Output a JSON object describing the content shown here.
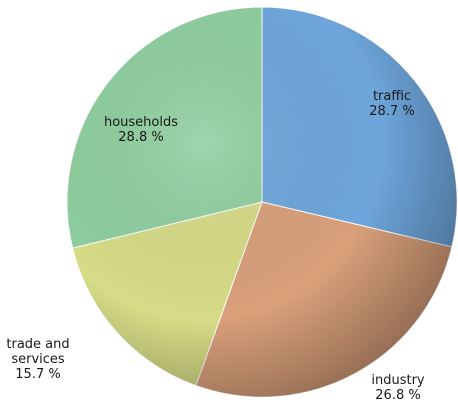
{
  "chart_data": {
    "type": "pie",
    "categories": [
      "traffic",
      "industry",
      "trade and services",
      "households"
    ],
    "values": [
      28.7,
      26.8,
      15.7,
      28.8
    ],
    "value_labels": [
      "28.7 %",
      "26.8 %",
      "15.7 %",
      "28.8 %"
    ],
    "colors": [
      "#6ea6dc",
      "#d9a07a",
      "#d6dc86",
      "#8fcf9f"
    ]
  }
}
